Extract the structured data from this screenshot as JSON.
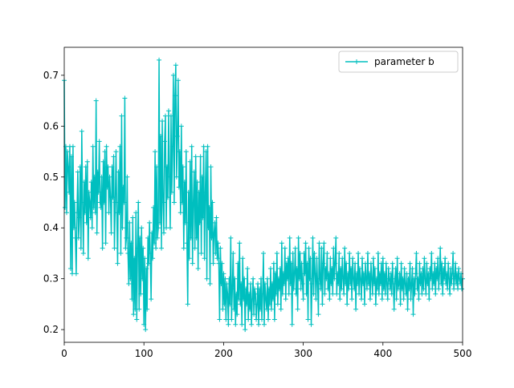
{
  "chart_data": {
    "type": "line",
    "xlim": [
      0,
      500
    ],
    "ylim": [
      0.175,
      0.755
    ],
    "xticks": [
      0,
      100,
      200,
      300,
      400,
      500
    ],
    "yticks": [
      0.2,
      0.3,
      0.4,
      0.5,
      0.6,
      0.7
    ],
    "legend": "upper right",
    "marker": "+",
    "x": [
      0,
      1,
      2,
      3,
      4,
      5,
      6,
      7,
      8,
      9,
      10,
      11,
      12,
      13,
      14,
      15,
      16,
      17,
      18,
      19,
      20,
      21,
      22,
      23,
      24,
      25,
      26,
      27,
      28,
      29,
      30,
      31,
      32,
      33,
      34,
      35,
      36,
      37,
      38,
      39,
      40,
      41,
      42,
      43,
      44,
      45,
      46,
      47,
      48,
      49,
      50,
      51,
      52,
      53,
      54,
      55,
      56,
      57,
      58,
      59,
      60,
      61,
      62,
      63,
      64,
      65,
      66,
      67,
      68,
      69,
      70,
      71,
      72,
      73,
      74,
      75,
      76,
      77,
      78,
      79,
      80,
      81,
      82,
      83,
      84,
      85,
      86,
      87,
      88,
      89,
      90,
      91,
      92,
      93,
      94,
      95,
      96,
      97,
      98,
      99,
      100,
      101,
      102,
      103,
      104,
      105,
      106,
      107,
      108,
      109,
      110,
      111,
      112,
      113,
      114,
      115,
      116,
      117,
      118,
      119,
      120,
      121,
      122,
      123,
      124,
      125,
      126,
      127,
      128,
      129,
      130,
      131,
      132,
      133,
      134,
      135,
      136,
      137,
      138,
      139,
      140,
      141,
      142,
      143,
      144,
      145,
      146,
      147,
      148,
      149,
      150,
      151,
      152,
      153,
      154,
      155,
      156,
      157,
      158,
      159,
      160,
      161,
      162,
      163,
      164,
      165,
      166,
      167,
      168,
      169,
      170,
      171,
      172,
      173,
      174,
      175,
      176,
      177,
      178,
      179,
      180,
      181,
      182,
      183,
      184,
      185,
      186,
      187,
      188,
      189,
      190,
      191,
      192,
      193,
      194,
      195,
      196,
      197,
      198,
      199,
      200,
      201,
      202,
      203,
      204,
      205,
      206,
      207,
      208,
      209,
      210,
      211,
      212,
      213,
      214,
      215,
      216,
      217,
      218,
      219,
      220,
      221,
      222,
      223,
      224,
      225,
      226,
      227,
      228,
      229,
      230,
      231,
      232,
      233,
      234,
      235,
      236,
      237,
      238,
      239,
      240,
      241,
      242,
      243,
      244,
      245,
      246,
      247,
      248,
      249,
      250,
      251,
      252,
      253,
      254,
      255,
      256,
      257,
      258,
      259,
      260,
      261,
      262,
      263,
      264,
      265,
      266,
      267,
      268,
      269,
      270,
      271,
      272,
      273,
      274,
      275,
      276,
      277,
      278,
      279,
      280,
      281,
      282,
      283,
      284,
      285,
      286,
      287,
      288,
      289,
      290,
      291,
      292,
      293,
      294,
      295,
      296,
      297,
      298,
      299,
      300,
      301,
      302,
      303,
      304,
      305,
      306,
      307,
      308,
      309,
      310,
      311,
      312,
      313,
      314,
      315,
      316,
      317,
      318,
      319,
      320,
      321,
      322,
      323,
      324,
      325,
      326,
      327,
      328,
      329,
      330,
      331,
      332,
      333,
      334,
      335,
      336,
      337,
      338,
      339,
      340,
      341,
      342,
      343,
      344,
      345,
      346,
      347,
      348,
      349,
      350,
      351,
      352,
      353,
      354,
      355,
      356,
      357,
      358,
      359,
      360,
      361,
      362,
      363,
      364,
      365,
      366,
      367,
      368,
      369,
      370,
      371,
      372,
      373,
      374,
      375,
      376,
      377,
      378,
      379,
      380,
      381,
      382,
      383,
      384,
      385,
      386,
      387,
      388,
      389,
      390,
      391,
      392,
      393,
      394,
      395,
      396,
      397,
      398,
      399,
      400,
      401,
      402,
      403,
      404,
      405,
      406,
      407,
      408,
      409,
      410,
      411,
      412,
      413,
      414,
      415,
      416,
      417,
      418,
      419,
      420,
      421,
      422,
      423,
      424,
      425,
      426,
      427,
      428,
      429,
      430,
      431,
      432,
      433,
      434,
      435,
      436,
      437,
      438,
      439,
      440,
      441,
      442,
      443,
      444,
      445,
      446,
      447,
      448,
      449,
      450,
      451,
      452,
      453,
      454,
      455,
      456,
      457,
      458,
      459,
      460,
      461,
      462,
      463,
      464,
      465,
      466,
      467,
      468,
      469,
      470,
      471,
      472,
      473,
      474,
      475,
      476,
      477,
      478,
      479,
      480,
      481,
      482,
      483,
      484,
      485,
      486,
      487,
      488,
      489,
      490,
      491,
      492,
      493,
      494,
      495,
      496,
      497,
      498,
      499,
      500
    ],
    "series": [
      {
        "name": "parameter b",
        "color": "#00bfbf",
        "values": [
          0.69,
          0.44,
          0.56,
          0.43,
          0.55,
          0.52,
          0.47,
          0.56,
          0.32,
          0.54,
          0.31,
          0.56,
          0.4,
          0.45,
          0.38,
          0.31,
          0.43,
          0.51,
          0.38,
          0.42,
          0.52,
          0.36,
          0.59,
          0.45,
          0.35,
          0.49,
          0.43,
          0.52,
          0.41,
          0.53,
          0.34,
          0.47,
          0.45,
          0.42,
          0.49,
          0.4,
          0.56,
          0.44,
          0.5,
          0.43,
          0.65,
          0.39,
          0.51,
          0.47,
          0.57,
          0.45,
          0.44,
          0.5,
          0.36,
          0.53,
          0.45,
          0.55,
          0.37,
          0.56,
          0.48,
          0.52,
          0.43,
          0.5,
          0.46,
          0.39,
          0.52,
          0.46,
          0.54,
          0.36,
          0.45,
          0.55,
          0.43,
          0.33,
          0.51,
          0.43,
          0.56,
          0.35,
          0.62,
          0.4,
          0.48,
          0.45,
          0.655,
          0.36,
          0.38,
          0.5,
          0.35,
          0.29,
          0.41,
          0.3,
          0.37,
          0.26,
          0.42,
          0.23,
          0.34,
          0.24,
          0.43,
          0.22,
          0.36,
          0.45,
          0.24,
          0.38,
          0.27,
          0.4,
          0.3,
          0.36,
          0.21,
          0.34,
          0.2,
          0.32,
          0.24,
          0.38,
          0.33,
          0.41,
          0.35,
          0.26,
          0.39,
          0.34,
          0.44,
          0.37,
          0.55,
          0.36,
          0.52,
          0.38,
          0.4,
          0.73,
          0.41,
          0.58,
          0.36,
          0.61,
          0.45,
          0.39,
          0.57,
          0.62,
          0.4,
          0.52,
          0.46,
          0.63,
          0.5,
          0.4,
          0.62,
          0.47,
          0.56,
          0.7,
          0.45,
          0.66,
          0.72,
          0.5,
          0.58,
          0.69,
          0.48,
          0.55,
          0.43,
          0.6,
          0.45,
          0.52,
          0.36,
          0.49,
          0.41,
          0.55,
          0.37,
          0.25,
          0.47,
          0.34,
          0.53,
          0.38,
          0.56,
          0.33,
          0.45,
          0.51,
          0.36,
          0.54,
          0.38,
          0.49,
          0.32,
          0.47,
          0.41,
          0.54,
          0.35,
          0.5,
          0.42,
          0.56,
          0.34,
          0.47,
          0.55,
          0.3,
          0.56,
          0.4,
          0.44,
          0.29,
          0.52,
          0.38,
          0.45,
          0.33,
          0.39,
          0.41,
          0.35,
          0.42,
          0.34,
          0.37,
          0.33,
          0.22,
          0.36,
          0.29,
          0.33,
          0.24,
          0.31,
          0.25,
          0.3,
          0.22,
          0.29,
          0.27,
          0.21,
          0.3,
          0.25,
          0.38,
          0.22,
          0.28,
          0.35,
          0.24,
          0.3,
          0.21,
          0.27,
          0.23,
          0.33,
          0.26,
          0.37,
          0.25,
          0.29,
          0.21,
          0.34,
          0.26,
          0.3,
          0.2,
          0.28,
          0.25,
          0.32,
          0.22,
          0.27,
          0.24,
          0.29,
          0.21,
          0.26,
          0.3,
          0.23,
          0.28,
          0.27,
          0.22,
          0.25,
          0.29,
          0.21,
          0.28,
          0.24,
          0.3,
          0.22,
          0.27,
          0.35,
          0.21,
          0.29,
          0.26,
          0.24,
          0.3,
          0.22,
          0.28,
          0.25,
          0.32,
          0.24,
          0.29,
          0.26,
          0.33,
          0.22,
          0.31,
          0.27,
          0.35,
          0.25,
          0.3,
          0.28,
          0.32,
          0.24,
          0.37,
          0.27,
          0.31,
          0.29,
          0.36,
          0.26,
          0.33,
          0.3,
          0.34,
          0.27,
          0.38,
          0.29,
          0.33,
          0.21,
          0.35,
          0.28,
          0.31,
          0.36,
          0.27,
          0.32,
          0.24,
          0.38,
          0.3,
          0.35,
          0.28,
          0.33,
          0.29,
          0.26,
          0.35,
          0.31,
          0.37,
          0.27,
          0.33,
          0.22,
          0.36,
          0.3,
          0.34,
          0.21,
          0.29,
          0.38,
          0.27,
          0.35,
          0.31,
          0.26,
          0.34,
          0.29,
          0.23,
          0.37,
          0.3,
          0.28,
          0.36,
          0.25,
          0.33,
          0.37,
          0.27,
          0.32,
          0.3,
          0.35,
          0.28,
          0.31,
          0.26,
          0.34,
          0.29,
          0.32,
          0.27,
          0.36,
          0.3,
          0.33,
          0.38,
          0.27,
          0.31,
          0.29,
          0.35,
          0.26,
          0.32,
          0.28,
          0.34,
          0.3,
          0.27,
          0.36,
          0.29,
          0.33,
          0.25,
          0.31,
          0.28,
          0.35,
          0.29,
          0.32,
          0.26,
          0.34,
          0.3,
          0.28,
          0.33,
          0.24,
          0.31,
          0.29,
          0.35,
          0.27,
          0.32,
          0.3,
          0.26,
          0.34,
          0.29,
          0.31,
          0.25,
          0.33,
          0.3,
          0.28,
          0.35,
          0.29,
          0.31,
          0.26,
          0.33,
          0.3,
          0.27,
          0.34,
          0.29,
          0.32,
          0.25,
          0.3,
          0.28,
          0.35,
          0.27,
          0.31,
          0.29,
          0.33,
          0.26,
          0.34,
          0.28,
          0.31,
          0.27,
          0.33,
          0.29,
          0.26,
          0.32,
          0.3,
          0.28,
          0.31,
          0.27,
          0.33,
          0.29,
          0.24,
          0.3,
          0.32,
          0.26,
          0.34,
          0.28,
          0.29,
          0.31,
          0.25,
          0.33,
          0.28,
          0.3,
          0.26,
          0.32,
          0.29,
          0.27,
          0.31,
          0.24,
          0.3,
          0.28,
          0.33,
          0.26,
          0.29,
          0.32,
          0.23,
          0.3,
          0.27,
          0.31,
          0.35,
          0.28,
          0.3,
          0.26,
          0.33,
          0.29,
          0.31,
          0.27,
          0.32,
          0.28,
          0.34,
          0.3,
          0.27,
          0.33,
          0.29,
          0.31,
          0.26,
          0.32,
          0.3,
          0.35,
          0.28,
          0.31,
          0.29,
          0.33,
          0.27,
          0.32,
          0.3,
          0.34,
          0.28,
          0.31,
          0.36,
          0.29,
          0.33,
          0.27,
          0.32,
          0.3,
          0.34,
          0.29,
          0.31,
          0.28,
          0.33,
          0.3,
          0.27,
          0.32,
          0.29,
          0.31,
          0.35,
          0.28,
          0.3,
          0.33,
          0.29,
          0.31,
          0.28,
          0.32,
          0.3,
          0.29,
          0.31,
          0.28,
          0.3
        ]
      }
    ]
  }
}
